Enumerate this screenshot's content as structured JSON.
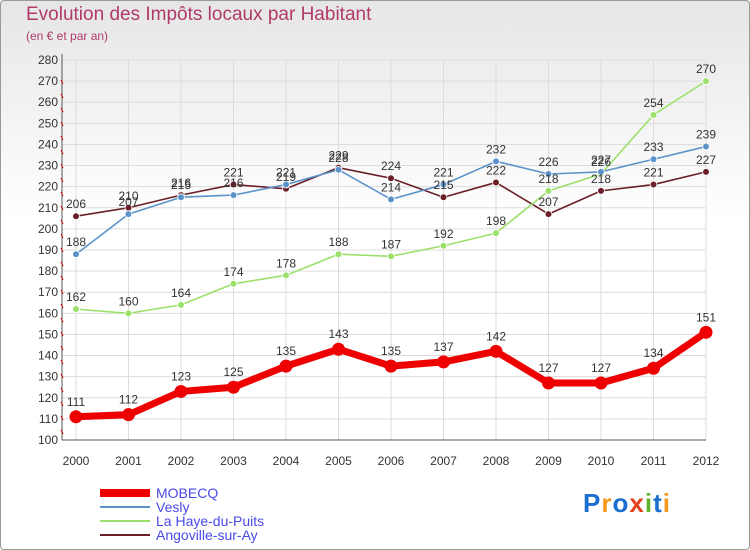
{
  "title": "Evolution des Impôts locaux par Habitant",
  "subtitle": "(en € et par an)",
  "logo": {
    "text": "Proxiti",
    "letters": [
      "P",
      "r",
      "o",
      "x",
      "i",
      "t",
      "i"
    ],
    "colors": [
      "#1a6fd0",
      "#f39a1e",
      "#1a6fd0",
      "#e8401c",
      "#62b32c",
      "#1a6fd0",
      "#f39a1e"
    ]
  },
  "chart_data": {
    "type": "line",
    "title": "Evolution des Impôts locaux par Habitant",
    "subtitle": "(en € et par an)",
    "xlabel": "",
    "ylabel": "",
    "ylim": [
      100,
      280
    ],
    "yticks": [
      100,
      110,
      120,
      130,
      140,
      150,
      160,
      170,
      180,
      190,
      200,
      210,
      220,
      230,
      240,
      250,
      260,
      270,
      280
    ],
    "categories": [
      "2000",
      "2001",
      "2002",
      "2003",
      "2004",
      "2005",
      "2006",
      "2007",
      "2008",
      "2009",
      "2010",
      "2011",
      "2012"
    ],
    "grid": true,
    "legend_position": "bottom-left",
    "series": [
      {
        "name": "MOBECQ",
        "color": "#ee0000",
        "values": [
          111,
          112,
          123,
          125,
          135,
          143,
          135,
          137,
          142,
          127,
          127,
          134,
          151
        ]
      },
      {
        "name": "Vesly",
        "color": "#5b93c8",
        "values": [
          188,
          207,
          215,
          216,
          221,
          228,
          214,
          221,
          232,
          226,
          227,
          233,
          239
        ]
      },
      {
        "name": "La Haye-du-Puits",
        "color": "#9be06a",
        "values": [
          162,
          160,
          164,
          174,
          178,
          188,
          187,
          192,
          198,
          218,
          226,
          254,
          270
        ]
      },
      {
        "name": "Angoville-sur-Ay",
        "color": "#6b1f28",
        "values": [
          206,
          210,
          216,
          221,
          219,
          229,
          224,
          215,
          222,
          207,
          218,
          221,
          227
        ]
      }
    ]
  }
}
